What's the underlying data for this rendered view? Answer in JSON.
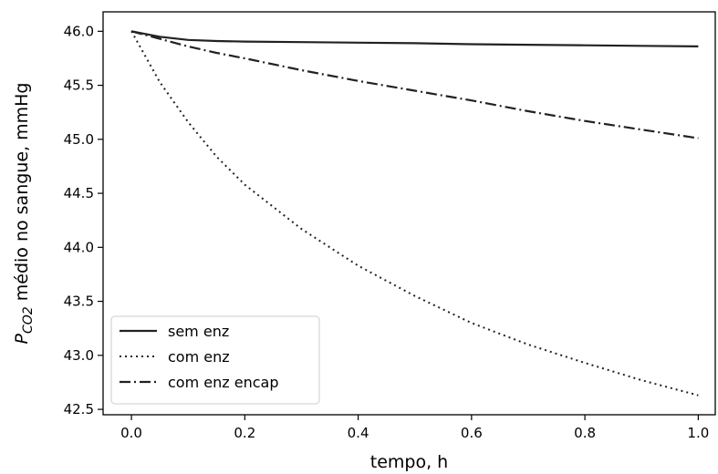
{
  "chart_data": {
    "type": "line",
    "xlabel": "tempo, h",
    "ylabel_prefix": "P",
    "ylabel_subscript": "CO2",
    "ylabel_suffix": " médio no sangue, mmHg",
    "xlim": [
      -0.05,
      1.03
    ],
    "ylim": [
      42.45,
      46.18
    ],
    "xticks": [
      0.0,
      0.2,
      0.4,
      0.6,
      0.8,
      1.0
    ],
    "xtick_labels": [
      "0.0",
      "0.2",
      "0.4",
      "0.6",
      "0.8",
      "1.0"
    ],
    "yticks": [
      42.5,
      43.0,
      43.5,
      44.0,
      44.5,
      45.0,
      45.5,
      46.0
    ],
    "ytick_labels": [
      "42.5",
      "43.0",
      "43.5",
      "44.0",
      "44.5",
      "45.0",
      "45.5",
      "46.0"
    ],
    "grid": false,
    "legend_position": "lower-left",
    "series": [
      {
        "name": "sem enz",
        "style": "solid",
        "color": "#222222",
        "x": [
          0.0,
          0.05,
          0.1,
          0.15,
          0.2,
          0.3,
          0.4,
          0.5,
          0.6,
          0.7,
          0.8,
          0.9,
          1.0
        ],
        "y": [
          46.0,
          45.95,
          45.92,
          45.91,
          45.905,
          45.9,
          45.895,
          45.89,
          45.88,
          45.875,
          45.87,
          45.865,
          45.86
        ]
      },
      {
        "name": "com enz",
        "style": "dotted",
        "color": "#222222",
        "x": [
          0.0,
          0.05,
          0.1,
          0.15,
          0.2,
          0.3,
          0.4,
          0.5,
          0.6,
          0.7,
          0.8,
          0.9,
          1.0
        ],
        "y": [
          46.0,
          45.53,
          45.16,
          44.84,
          44.58,
          44.17,
          43.83,
          43.55,
          43.3,
          43.1,
          42.93,
          42.77,
          42.63
        ]
      },
      {
        "name": "com enz encap",
        "style": "dashdot",
        "color": "#222222",
        "x": [
          0.0,
          0.05,
          0.1,
          0.15,
          0.2,
          0.3,
          0.4,
          0.5,
          0.6,
          0.7,
          0.8,
          0.9,
          1.0
        ],
        "y": [
          46.0,
          45.93,
          45.86,
          45.8,
          45.75,
          45.64,
          45.54,
          45.45,
          45.36,
          45.26,
          45.17,
          45.09,
          45.01
        ]
      }
    ]
  }
}
